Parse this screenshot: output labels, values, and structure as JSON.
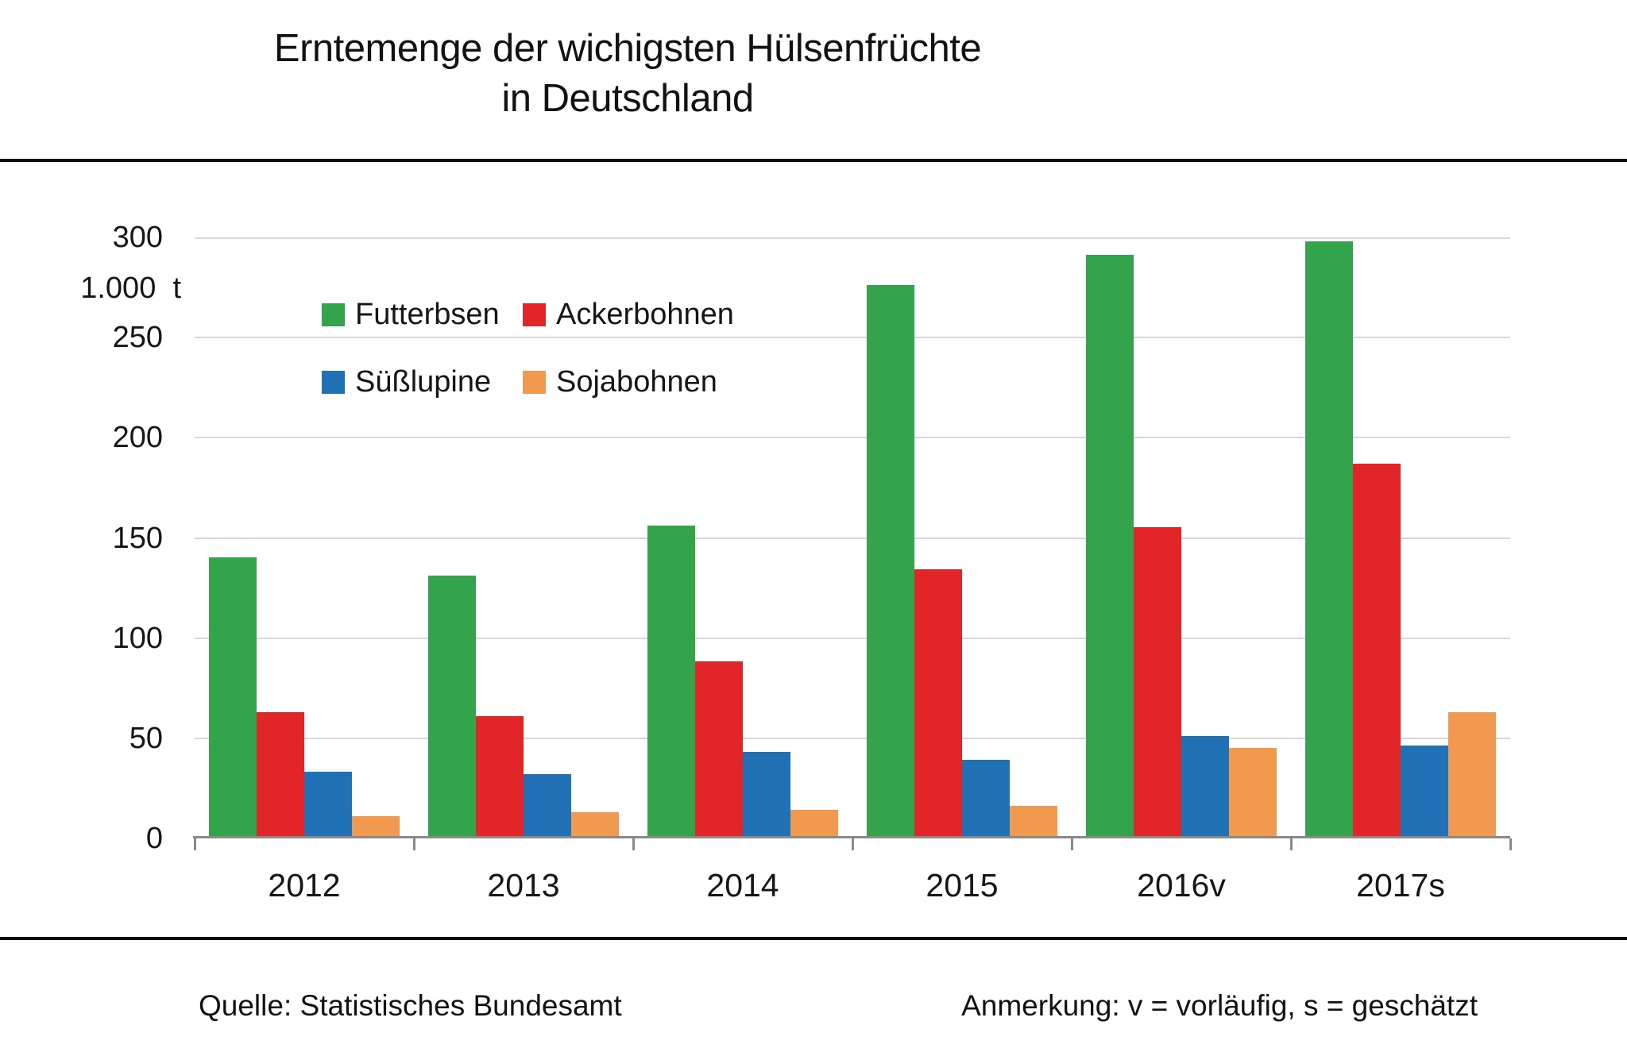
{
  "title": {
    "line1": "Erntemenge der wichigsten Hülsenfrüchte",
    "line2": "in Deutschland"
  },
  "y_axis": {
    "unit_label": "1.000  t",
    "ticks": [
      0,
      50,
      100,
      150,
      200,
      250,
      300
    ]
  },
  "chart_data": {
    "type": "bar",
    "title": "Erntemenge der wichigsten Hülsenfrüchte in Deutschland",
    "categories": [
      "2012",
      "2013",
      "2014",
      "2015",
      "2016v",
      "2017s"
    ],
    "series": [
      {
        "name": "Futterbsen",
        "color": "#33a34c",
        "values": [
          139,
          130,
          155,
          275,
          290,
          297
        ]
      },
      {
        "name": "Ackerbohnen",
        "color": "#e12529",
        "values": [
          62,
          60,
          87,
          133,
          154,
          186
        ]
      },
      {
        "name": "Süßlupine",
        "color": "#2171b6",
        "values": [
          32,
          31,
          42,
          38,
          50,
          45
        ]
      },
      {
        "name": "Sojabohnen",
        "color": "#f0994f",
        "values": [
          10,
          12,
          13,
          15,
          44,
          62
        ]
      }
    ],
    "xlabel": "",
    "ylabel": "1.000 t",
    "ylim": [
      0,
      300
    ],
    "grid": true,
    "gridline_color": "#d8d8d8",
    "axis_color": "#8a8a8a",
    "legend_position": "upper-left-inside"
  },
  "footer": {
    "source": "Quelle: Statistisches Bundesamt",
    "note": "Anmerkung: v = vorläufig, s = geschätzt"
  }
}
